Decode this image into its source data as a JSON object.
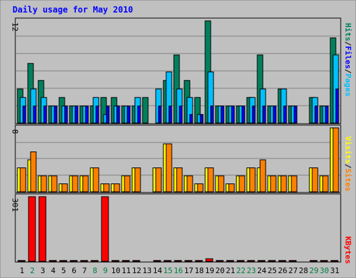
{
  "colors": {
    "background": "#c0c0c0",
    "plot_background": "#c0c0c0",
    "title": "#0000ff",
    "hits": "#00805c",
    "files": "#00c0ff",
    "pages": "#0000ff",
    "visits": "#ffff00",
    "sites": "#ff8000",
    "kbytes": "#ff0000",
    "weekday": "#000000",
    "weekend": "#008040"
  },
  "chart_data": [
    {
      "type": "bar",
      "title": "Daily usage for May 2010",
      "panel": "hits_files_pages",
      "y_max_label": "12",
      "ylim": [
        0,
        12
      ],
      "legend_labels": [
        "Pages",
        "Files",
        "Hits"
      ],
      "legend_separator": "/",
      "categories": [
        "1",
        "2",
        "3",
        "4",
        "5",
        "6",
        "7",
        "8",
        "9",
        "10",
        "11",
        "12",
        "13",
        "14",
        "15",
        "16",
        "17",
        "18",
        "19",
        "20",
        "21",
        "22",
        "23",
        "24",
        "25",
        "26",
        "27",
        "28",
        "29",
        "30",
        "31"
      ],
      "series": [
        {
          "name": "Hits",
          "values": [
            4,
            7,
            5,
            2,
            3,
            2,
            2,
            2,
            3,
            3,
            2,
            2,
            3,
            0,
            5,
            8,
            5,
            3,
            12,
            2,
            2,
            2,
            3,
            8,
            2,
            4,
            2,
            0,
            3,
            2,
            10
          ]
        },
        {
          "name": "Files",
          "values": [
            3,
            4,
            3,
            2,
            2,
            2,
            2,
            3,
            1,
            2,
            2,
            3,
            0,
            4,
            6,
            4,
            3,
            1,
            6,
            2,
            2,
            2,
            3,
            4,
            2,
            4,
            2,
            0,
            3,
            2,
            8
          ]
        },
        {
          "name": "Pages",
          "values": [
            2,
            2,
            2,
            2,
            2,
            2,
            2,
            2,
            2,
            2,
            2,
            2,
            0,
            2,
            2,
            2,
            1,
            1,
            2,
            2,
            2,
            2,
            2,
            2,
            2,
            2,
            2,
            0,
            2,
            2,
            4
          ]
        }
      ]
    },
    {
      "type": "bar",
      "panel": "visits_sites",
      "y_max_label": "8",
      "ylim": [
        0,
        8
      ],
      "legend_labels": [
        "Sites",
        "Visits"
      ],
      "legend_separator": "/",
      "categories": [
        "1",
        "2",
        "3",
        "4",
        "5",
        "6",
        "7",
        "8",
        "9",
        "10",
        "11",
        "12",
        "13",
        "14",
        "15",
        "16",
        "17",
        "18",
        "19",
        "20",
        "21",
        "22",
        "23",
        "24",
        "25",
        "26",
        "27",
        "28",
        "29",
        "30",
        "31"
      ],
      "series": [
        {
          "name": "Visits",
          "values": [
            3,
            4,
            2,
            2,
            1,
            2,
            2,
            3,
            1,
            1,
            2,
            3,
            0,
            3,
            6,
            3,
            2,
            1,
            3,
            2,
            1,
            2,
            3,
            3,
            2,
            2,
            2,
            0,
            3,
            2,
            8
          ]
        },
        {
          "name": "Sites",
          "values": [
            3,
            5,
            2,
            2,
            1,
            2,
            2,
            3,
            1,
            1,
            2,
            3,
            0,
            3,
            6,
            3,
            2,
            1,
            3,
            2,
            1,
            2,
            3,
            4,
            2,
            2,
            2,
            0,
            3,
            2,
            8
          ]
        }
      ]
    },
    {
      "type": "bar",
      "panel": "kbytes",
      "y_max_label": "301",
      "ylim": [
        0,
        301
      ],
      "legend_labels": [
        "KBytes"
      ],
      "categories": [
        "1",
        "2",
        "3",
        "4",
        "5",
        "6",
        "7",
        "8",
        "9",
        "10",
        "11",
        "12",
        "13",
        "14",
        "15",
        "16",
        "17",
        "18",
        "19",
        "20",
        "21",
        "22",
        "23",
        "24",
        "25",
        "26",
        "27",
        "28",
        "29",
        "30",
        "31"
      ],
      "series": [
        {
          "name": "KBytes",
          "values": [
            4,
            301,
            301,
            4,
            4,
            4,
            4,
            4,
            301,
            4,
            4,
            4,
            0,
            4,
            4,
            4,
            4,
            4,
            12,
            4,
            4,
            4,
            4,
            4,
            4,
            4,
            4,
            0,
            4,
            4,
            4
          ]
        }
      ]
    }
  ],
  "x_axis": {
    "labels": [
      "1",
      "2",
      "3",
      "4",
      "5",
      "6",
      "7",
      "8",
      "9",
      "10",
      "11",
      "12",
      "13",
      "14",
      "15",
      "16",
      "17",
      "18",
      "19",
      "20",
      "21",
      "22",
      "23",
      "24",
      "25",
      "26",
      "27",
      "28",
      "29",
      "30",
      "31"
    ],
    "weekend": [
      false,
      true,
      false,
      false,
      false,
      false,
      false,
      true,
      true,
      false,
      false,
      false,
      false,
      false,
      true,
      true,
      false,
      false,
      false,
      false,
      false,
      true,
      true,
      false,
      false,
      false,
      false,
      false,
      true,
      true,
      false
    ]
  }
}
